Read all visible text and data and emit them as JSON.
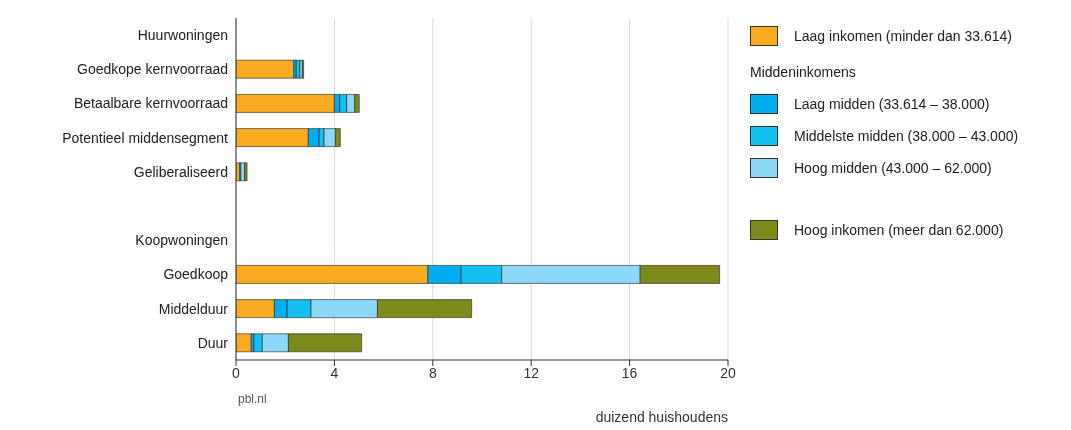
{
  "chart_data": {
    "type": "bar",
    "orientation": "horizontal",
    "stacked": true,
    "xlabel": "duizend huishoudens",
    "legend_title": "Middeninkomens",
    "annotations": [
      "pbl.nl"
    ],
    "categories": [
      "Huurwoningen",
      "Goedkope kernvoorraad",
      "Betaalbare kernvoorraad",
      "Potentieel middensegment",
      "Geliberaliseerd",
      null,
      "Koopwoningen",
      "Goedkoop",
      "Middelduur",
      "Duur"
    ],
    "series": [
      {
        "name": "Laag inkomen (minder dan 33.614)",
        "color": "#f9ac22",
        "values": [
          null,
          2.35,
          4.0,
          2.94,
          0.15,
          null,
          null,
          7.8,
          1.56,
          0.62
        ]
      },
      {
        "name": "Laag midden (33.614 – 38.000)",
        "color": "#00adef",
        "values": [
          null,
          0.1,
          0.22,
          0.44,
          null,
          null,
          null,
          1.35,
          0.52,
          0.11
        ]
      },
      {
        "name": "Middelste midden (38.000 – 43.000)",
        "color": "#14c0f2",
        "values": [
          null,
          0.15,
          0.28,
          0.2,
          0.05,
          null,
          null,
          1.65,
          0.97,
          0.34
        ]
      },
      {
        "name": "Hoog midden (43.000 – 62.000)",
        "color": "#8dd8f8",
        "values": [
          null,
          0.1,
          0.33,
          0.46,
          0.15,
          null,
          null,
          5.63,
          2.7,
          1.06
        ]
      },
      {
        "name": "Hoog inkomen (meer dan 62.000)",
        "color": "#7f8a1d",
        "values": [
          null,
          0.05,
          0.18,
          0.2,
          0.1,
          null,
          null,
          3.23,
          3.83,
          2.98
        ]
      }
    ],
    "xlim": [
      0,
      20
    ],
    "xticks": [
      0,
      4,
      8,
      12,
      16,
      20
    ],
    "grid": "x",
    "legend": "right"
  }
}
